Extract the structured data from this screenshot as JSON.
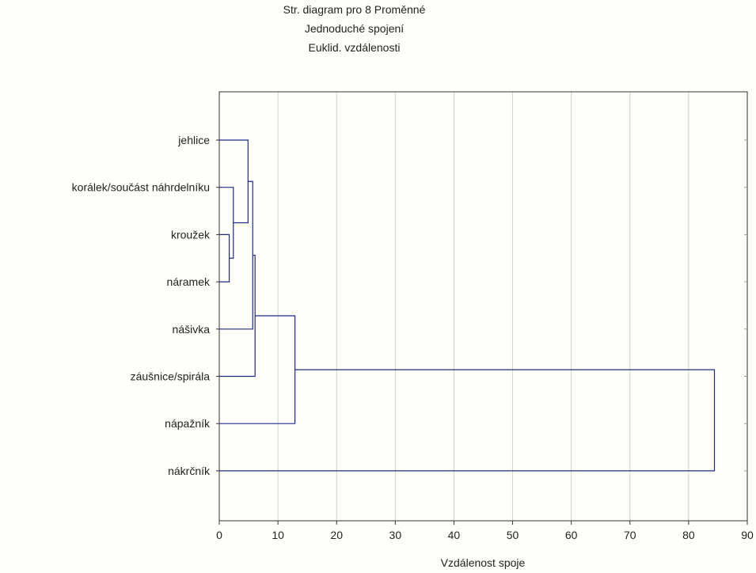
{
  "chart_data": {
    "type": "dendrogram",
    "title_lines": [
      "Str. diagram pro 8   Proměnné",
      "Jednoduché spojení",
      "Euklid. vzdálenosti"
    ],
    "xlabel": "Vzdálenost spoje",
    "xlim": [
      0,
      90
    ],
    "xticks": [
      0,
      10,
      20,
      30,
      40,
      50,
      60,
      70,
      80,
      90
    ],
    "grid": true,
    "line_color": "#1f2a8a",
    "leaves": [
      "jehlice",
      "korálek/součást náhrdelníku",
      "kroužek",
      "náramek",
      "nášivka",
      "záušnice/spirála",
      "nápažník",
      "nákrčník"
    ],
    "merges": [
      {
        "left": "kroužek",
        "right": "náramek",
        "distance": 1.7
      },
      {
        "left": "korálek/součást náhrdelníku",
        "right": "C1",
        "distance": 2.4
      },
      {
        "left": "jehlice",
        "right": "C2",
        "distance": 4.9
      },
      {
        "left": "C3",
        "right": "nášivka",
        "distance": 5.7
      },
      {
        "left": "C4",
        "right": "záušnice/spirála",
        "distance": 6.1
      },
      {
        "left": "C5",
        "right": "nápažník",
        "distance": 12.9
      },
      {
        "left": "C6",
        "right": "nákrčník",
        "distance": 84.4
      }
    ]
  }
}
